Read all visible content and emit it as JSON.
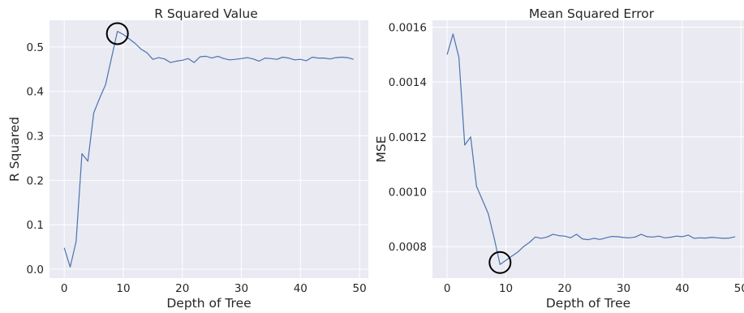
{
  "colors": {
    "plot_bg": "#EAEAF2",
    "grid": "#FFFFFF",
    "line": "#4C72B0",
    "text": "#262626",
    "marker": "#000000"
  },
  "chart_data": [
    {
      "type": "line",
      "title": "R Squared Value",
      "xlabel": "Depth of Tree",
      "ylabel": "R Squared",
      "xlim": [
        -2.5,
        51.5
      ],
      "ylim": [
        -0.02,
        0.56
      ],
      "xticks": [
        0,
        10,
        20,
        30,
        40,
        50
      ],
      "xtick_labels": [
        "0",
        "10",
        "20",
        "30",
        "40",
        "50"
      ],
      "yticks": [
        0.0,
        0.1,
        0.2,
        0.3,
        0.4,
        0.5
      ],
      "ytick_labels": [
        "0.0",
        "0.1",
        "0.2",
        "0.3",
        "0.4",
        "0.5"
      ],
      "grid": true,
      "x": [
        0,
        1,
        2,
        3,
        4,
        5,
        6,
        7,
        8,
        9,
        10,
        11,
        12,
        13,
        14,
        15,
        16,
        17,
        18,
        19,
        20,
        21,
        22,
        23,
        24,
        25,
        26,
        27,
        28,
        29,
        30,
        31,
        32,
        33,
        34,
        35,
        36,
        37,
        38,
        39,
        40,
        41,
        42,
        43,
        44,
        45,
        46,
        47,
        48,
        49
      ],
      "y": [
        0.048,
        0.005,
        0.062,
        0.26,
        0.243,
        0.352,
        0.385,
        0.415,
        0.475,
        0.535,
        0.528,
        0.518,
        0.508,
        0.495,
        0.487,
        0.472,
        0.476,
        0.473,
        0.465,
        0.468,
        0.47,
        0.474,
        0.465,
        0.478,
        0.479,
        0.475,
        0.479,
        0.474,
        0.471,
        0.472,
        0.474,
        0.476,
        0.473,
        0.468,
        0.475,
        0.474,
        0.472,
        0.477,
        0.475,
        0.471,
        0.472,
        0.469,
        0.477,
        0.475,
        0.475,
        0.473,
        0.476,
        0.477,
        0.476,
        0.472
      ],
      "highlight": {
        "x": 9,
        "y": 0.53
      }
    },
    {
      "type": "line",
      "title": "Mean Squared Error",
      "xlabel": "Depth of Tree",
      "ylabel": "MSE",
      "xlim": [
        -2.5,
        50.5
      ],
      "ylim": [
        0.000685,
        0.001625
      ],
      "xticks": [
        0,
        10,
        20,
        30,
        40,
        50
      ],
      "xtick_labels": [
        "0",
        "10",
        "20",
        "30",
        "40",
        "50"
      ],
      "yticks": [
        0.0008,
        0.001,
        0.0012,
        0.0014,
        0.0016
      ],
      "ytick_labels": [
        "0.0008",
        "0.0010",
        "0.0012",
        "0.0014",
        "0.0016"
      ],
      "grid": true,
      "x": [
        0,
        1,
        2,
        3,
        4,
        5,
        6,
        7,
        8,
        9,
        10,
        11,
        12,
        13,
        14,
        15,
        16,
        17,
        18,
        19,
        20,
        21,
        22,
        23,
        24,
        25,
        26,
        27,
        28,
        29,
        30,
        31,
        32,
        33,
        34,
        35,
        36,
        37,
        38,
        39,
        40,
        41,
        42,
        43,
        44,
        45,
        46,
        47,
        48,
        49
      ],
      "y": [
        0.0015,
        0.001575,
        0.00149,
        0.00117,
        0.0012,
        0.00102,
        0.00097,
        0.00092,
        0.00083,
        0.000735,
        0.00075,
        0.000765,
        0.00078,
        0.0008,
        0.000815,
        0.000835,
        0.00083,
        0.000835,
        0.000845,
        0.00084,
        0.000838,
        0.000832,
        0.000845,
        0.000828,
        0.000825,
        0.00083,
        0.000826,
        0.000832,
        0.000837,
        0.000836,
        0.000833,
        0.000832,
        0.000835,
        0.000845,
        0.000836,
        0.000835,
        0.000838,
        0.000832,
        0.000834,
        0.000838,
        0.000836,
        0.000842,
        0.00083,
        0.000832,
        0.000831,
        0.000834,
        0.000832,
        0.00083,
        0.000831,
        0.000836
      ],
      "highlight": {
        "x": 9,
        "y": 0.000742
      }
    }
  ]
}
